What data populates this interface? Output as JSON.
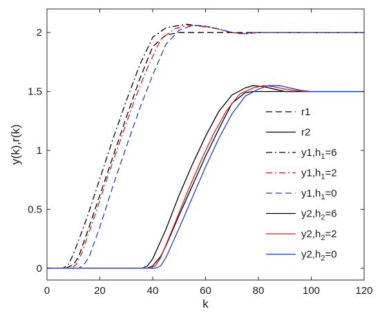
{
  "chart_data": {
    "type": "line",
    "xlabel": "k",
    "ylabel": "y(k),r(k)",
    "xlim": [
      0,
      120
    ],
    "ylim": [
      -0.1,
      2.2
    ],
    "xticks": [
      0,
      20,
      40,
      60,
      80,
      100,
      120
    ],
    "yticks": [
      0,
      0.5,
      1,
      1.5,
      2
    ],
    "ytick_labels": [
      "0",
      "0.5",
      "1",
      "1.5",
      "2"
    ],
    "grid": false,
    "legend_position": "right, below the curves' plateau",
    "series": [
      {
        "name": "r1",
        "legend_text": "r1",
        "color": "#000000",
        "dash": "dashed",
        "x": [
          0,
          7,
          10,
          12,
          15,
          20,
          25,
          30,
          35,
          40,
          45,
          50,
          52,
          55,
          120
        ],
        "y": [
          0,
          0,
          0.03,
          0.1,
          0.29,
          0.62,
          0.95,
          1.28,
          1.6,
          1.88,
          1.98,
          2.0,
          2.0,
          2.0,
          2.0
        ]
      },
      {
        "name": "r2",
        "legend_text": "r2",
        "color": "#000000",
        "dash": "solid",
        "x": [
          0,
          38,
          40,
          43,
          45,
          50,
          55,
          60,
          65,
          70,
          75,
          78,
          80,
          83,
          120
        ],
        "y": [
          0,
          0,
          0.02,
          0.1,
          0.19,
          0.45,
          0.7,
          0.95,
          1.18,
          1.4,
          1.49,
          1.5,
          1.5,
          1.5,
          1.5
        ]
      },
      {
        "name": "y1,h1=6",
        "legend_text": "y1,h",
        "legend_sub": "1",
        "legend_suffix": "=6",
        "color": "#000000",
        "dash": "dashdot",
        "x": [
          0,
          6,
          8,
          10,
          15,
          20,
          25,
          30,
          35,
          40,
          45,
          50,
          53,
          56,
          60,
          65,
          70,
          75,
          80,
          90,
          120
        ],
        "y": [
          0,
          0,
          0.03,
          0.12,
          0.42,
          0.76,
          1.1,
          1.42,
          1.72,
          1.96,
          2.04,
          2.06,
          2.07,
          2.06,
          2.05,
          2.03,
          2.0,
          1.99,
          2.0,
          2.0,
          2.0
        ]
      },
      {
        "name": "y1,h1=2",
        "legend_text": "y1,h",
        "legend_sub": "1",
        "legend_suffix": "=2",
        "color": "#e8191c",
        "dash": "dashdot",
        "x": [
          0,
          9,
          11,
          13,
          18,
          23,
          28,
          33,
          38,
          43,
          48,
          53,
          56,
          59,
          63,
          68,
          73,
          78,
          85,
          95,
          120
        ],
        "y": [
          0,
          0,
          0.03,
          0.12,
          0.44,
          0.78,
          1.1,
          1.42,
          1.7,
          1.94,
          2.03,
          2.06,
          2.06,
          2.05,
          2.04,
          2.01,
          1.99,
          2.0,
          2.0,
          2.0,
          2.0
        ]
      },
      {
        "name": "y1,h1=0",
        "legend_text": "y1,h",
        "legend_sub": "1",
        "legend_suffix": "=0",
        "color": "#1f3fd8",
        "dash": "dashed",
        "x": [
          0,
          12,
          14,
          16,
          20,
          25,
          30,
          35,
          40,
          45,
          50,
          55,
          58,
          61,
          65,
          70,
          75,
          80,
          88,
          100,
          120
        ],
        "y": [
          0,
          0,
          0.03,
          0.1,
          0.35,
          0.7,
          1.03,
          1.35,
          1.64,
          1.9,
          2.02,
          2.06,
          2.06,
          2.05,
          2.03,
          2.0,
          1.99,
          2.0,
          2.0,
          2.0,
          2.0
        ]
      },
      {
        "name": "y2,h2=6",
        "legend_text": "y2,h",
        "legend_sub": "2",
        "legend_suffix": "=6",
        "color": "#000000",
        "dash": "solid",
        "x": [
          0,
          36,
          38,
          40,
          45,
          50,
          55,
          60,
          65,
          70,
          75,
          78,
          82,
          86,
          90,
          95,
          100,
          110,
          120
        ],
        "y": [
          0,
          0,
          0.02,
          0.08,
          0.33,
          0.62,
          0.88,
          1.12,
          1.33,
          1.47,
          1.53,
          1.55,
          1.54,
          1.52,
          1.5,
          1.5,
          1.5,
          1.5,
          1.5
        ]
      },
      {
        "name": "y2,h2=2",
        "legend_text": "y2,h",
        "legend_sub": "2",
        "legend_suffix": "=2",
        "color": "#e8191c",
        "dash": "solid",
        "x": [
          0,
          39,
          41,
          43,
          48,
          53,
          58,
          63,
          68,
          73,
          78,
          82,
          86,
          90,
          94,
          98,
          105,
          120
        ],
        "y": [
          0,
          0,
          0.02,
          0.09,
          0.36,
          0.64,
          0.9,
          1.14,
          1.34,
          1.48,
          1.53,
          1.55,
          1.54,
          1.52,
          1.51,
          1.5,
          1.5,
          1.5
        ]
      },
      {
        "name": "y2,h2=0",
        "legend_text": "y2,h",
        "legend_sub": "2",
        "legend_suffix": "=0",
        "color": "#1f3fd8",
        "dash": "solid",
        "x": [
          0,
          41,
          43,
          45,
          50,
          55,
          60,
          65,
          70,
          75,
          80,
          84,
          88,
          92,
          96,
          100,
          108,
          120
        ],
        "y": [
          0,
          0,
          0.02,
          0.09,
          0.34,
          0.6,
          0.86,
          1.1,
          1.31,
          1.46,
          1.52,
          1.55,
          1.55,
          1.53,
          1.51,
          1.5,
          1.5,
          1.5
        ]
      }
    ]
  }
}
